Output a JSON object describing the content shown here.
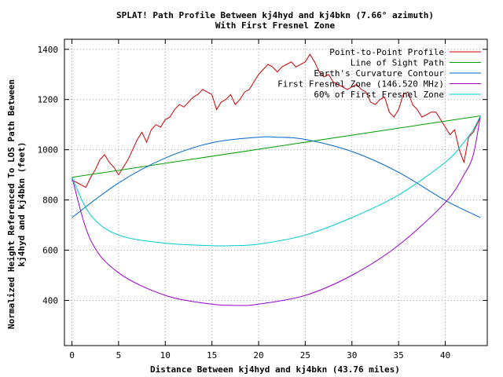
{
  "chart_data": {
    "type": "line",
    "title_line1": "SPLAT! Path Profile Between kj4hyd and kj4bkn (7.66° azimuth)",
    "title_line2": "With First Fresnel Zone",
    "xlabel": "Distance Between kj4hyd and kj4bkn (43.76 miles)",
    "ylabel_line1": "Normalized Height Referenced To LOS Path Between",
    "ylabel_line2": "kj4hyd and kj4bkn (feet)",
    "xlim": [
      -0.8,
      44.5
    ],
    "ylim": [
      220,
      1440
    ],
    "x_ticks": [
      0,
      5,
      10,
      15,
      20,
      25,
      30,
      35,
      40
    ],
    "y_ticks": [
      400,
      600,
      800,
      1000,
      1200,
      1400
    ],
    "legend_position": "top-right",
    "series": [
      {
        "name": "Point-to-Point Profile",
        "color": "#cc0000",
        "x": [
          0,
          0.5,
          1,
          1.5,
          2,
          2.5,
          3,
          3.5,
          4,
          4.5,
          5,
          5.5,
          6,
          6.5,
          7,
          7.5,
          8,
          8.5,
          9,
          9.5,
          10,
          10.5,
          11,
          11.5,
          12,
          12.5,
          13,
          13.5,
          14,
          14.5,
          15,
          15.5,
          16,
          16.5,
          17,
          17.5,
          18,
          18.5,
          19,
          19.5,
          20,
          20.5,
          21,
          21.5,
          22,
          22.5,
          23,
          23.5,
          24,
          24.5,
          25,
          25.5,
          26,
          26.5,
          27,
          27.5,
          28,
          28.5,
          29,
          29.5,
          30,
          30.5,
          31,
          31.5,
          32,
          32.5,
          33,
          33.5,
          34,
          34.5,
          35,
          35.5,
          36,
          36.5,
          37,
          37.5,
          38,
          38.5,
          39,
          39.5,
          40,
          40.5,
          41,
          41.5,
          42,
          42.5,
          43,
          43.76
        ],
        "values": [
          880,
          870,
          860,
          850,
          890,
          920,
          960,
          980,
          950,
          930,
          900,
          930,
          960,
          1000,
          1040,
          1070,
          1030,
          1080,
          1100,
          1090,
          1120,
          1130,
          1160,
          1180,
          1170,
          1190,
          1210,
          1220,
          1240,
          1230,
          1220,
          1160,
          1190,
          1200,
          1220,
          1180,
          1200,
          1230,
          1240,
          1270,
          1300,
          1320,
          1340,
          1330,
          1310,
          1330,
          1340,
          1350,
          1330,
          1340,
          1350,
          1380,
          1350,
          1310,
          1290,
          1300,
          1270,
          1260,
          1250,
          1240,
          1250,
          1260,
          1240,
          1230,
          1190,
          1180,
          1200,
          1210,
          1150,
          1130,
          1160,
          1220,
          1230,
          1180,
          1160,
          1130,
          1140,
          1150,
          1150,
          1120,
          1090,
          1060,
          1080,
          1000,
          950,
          1050,
          1070,
          1130
        ]
      },
      {
        "name": "Line of Sight Path",
        "color": "#00a000",
        "x": [
          0,
          43.76
        ],
        "values": [
          890,
          1135
        ]
      },
      {
        "name": "Earth's Curvature Contour",
        "color": "#0066cc",
        "x": [
          0,
          5,
          10,
          15,
          20,
          22,
          25,
          30,
          35,
          40,
          43.76
        ],
        "values": [
          730,
          868,
          967,
          1028,
          1050,
          1050,
          1041,
          993,
          910,
          798,
          730
        ]
      },
      {
        "name": "First Fresnel Zone (146.520 MHz)",
        "color": "#9900cc",
        "x": [
          0,
          2,
          5,
          10,
          15,
          18,
          20,
          25,
          30,
          35,
          40,
          42,
          43,
          43.76
        ],
        "values": [
          890,
          640,
          510,
          420,
          385,
          380,
          385,
          420,
          500,
          620,
          790,
          900,
          980,
          1135
        ]
      },
      {
        "name": "60% of First Fresnel Zone",
        "color": "#00cccc",
        "x": [
          0,
          2,
          5,
          10,
          15,
          17,
          20,
          25,
          30,
          35,
          40,
          42,
          43,
          43.76
        ],
        "values": [
          890,
          740,
          660,
          628,
          618,
          618,
          624,
          660,
          730,
          820,
          950,
          1030,
          1080,
          1135
        ]
      }
    ]
  }
}
